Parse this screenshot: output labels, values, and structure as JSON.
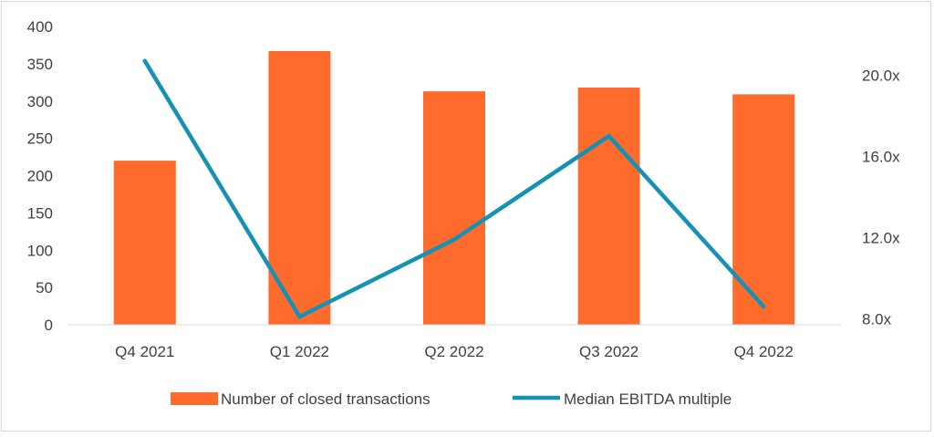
{
  "chart_data": {
    "type": "bar",
    "categories": [
      "Q4 2021",
      "Q1 2022",
      "Q2 2022",
      "Q3 2022",
      "Q4 2022"
    ],
    "series": [
      {
        "name": "Number of closed transactions",
        "type": "bar",
        "axis": "left",
        "color": "#FF6B2C",
        "values": [
          220,
          367,
          313,
          318,
          309
        ]
      },
      {
        "name": "Median EBITDA multiple",
        "type": "line",
        "axis": "right",
        "color": "#1591B5",
        "values": [
          20.7,
          8.1,
          11.9,
          17.0,
          8.6
        ]
      }
    ],
    "y_left": {
      "ylim": [
        0,
        400
      ],
      "ticks": [
        "0",
        "50",
        "100",
        "150",
        "200",
        "250",
        "300",
        "350",
        "400"
      ]
    },
    "y_right": {
      "ylim": [
        7.7,
        22.4
      ],
      "tick_values": [
        8,
        12,
        16,
        20
      ],
      "ticks": [
        "8.0x",
        "12.0x",
        "16.0x",
        "20.0x"
      ]
    },
    "grid": false,
    "legend": "bottom"
  }
}
